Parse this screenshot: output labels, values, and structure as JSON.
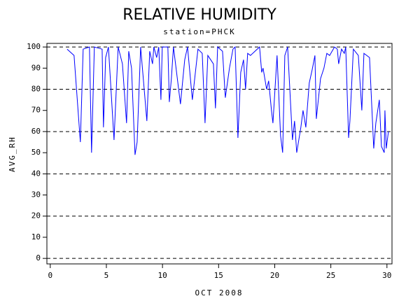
{
  "chart_data": {
    "type": "line",
    "title": "RELATIVE HUMIDITY",
    "subtitle": "station=PHCK",
    "x_label": "OCT 2008",
    "y_label": "AVG_RH",
    "xlim": [
      -0.3,
      30.45
    ],
    "ylim": [
      -2.6,
      101.7
    ],
    "xticks": [
      0,
      5,
      10,
      15,
      20,
      25,
      30
    ],
    "yticks": [
      0,
      10,
      20,
      30,
      40,
      50,
      60,
      70,
      80,
      90,
      100
    ],
    "grid_values": [
      0,
      20,
      40,
      60,
      80,
      100
    ],
    "grid": true,
    "series": [
      {
        "color": "#0000ff",
        "x": [
          1.5,
          2.12,
          2.68,
          2.93,
          3.49,
          3.68,
          3.93,
          4.62,
          4.74,
          4.93,
          5.18,
          5.68,
          6.05,
          6.43,
          6.8,
          6.99,
          7.24,
          7.55,
          7.74,
          8.05,
          8.61,
          8.86,
          9.11,
          9.23,
          9.48,
          9.67,
          9.86,
          9.98,
          10.48,
          10.61,
          10.79,
          10.98,
          11.6,
          11.98,
          12.23,
          12.66,
          13.16,
          13.54,
          13.79,
          14.04,
          14.54,
          14.72,
          14.91,
          15.35,
          15.6,
          15.97,
          16.28,
          16.47,
          16.72,
          16.97,
          17.22,
          17.4,
          17.59,
          17.84,
          18.65,
          18.84,
          18.96,
          19.28,
          19.46,
          19.71,
          19.84,
          20.21,
          20.52,
          20.71,
          20.9,
          21.15,
          21.58,
          21.77,
          21.96,
          22.33,
          22.52,
          22.77,
          23.08,
          23.33,
          23.58,
          23.71,
          24.08,
          24.39,
          24.64,
          24.89,
          25.33,
          25.58,
          25.7,
          25.95,
          26.2,
          26.33,
          26.58,
          26.7,
          27.01,
          27.45,
          27.76,
          27.95,
          28.45,
          28.82,
          29.01,
          29.32,
          29.51,
          29.76,
          29.82,
          29.94,
          30.13
        ],
        "values": [
          99,
          96,
          55,
          99,
          100,
          50,
          100,
          99,
          62,
          95,
          100,
          56,
          100,
          92,
          64,
          98,
          90,
          49,
          55,
          100,
          65,
          98,
          92,
          100,
          95,
          100,
          75,
          100,
          100,
          74,
          85,
          100,
          73,
          94,
          100,
          75,
          99,
          97,
          64,
          96,
          92,
          71,
          100,
          98,
          76,
          90,
          99,
          100,
          57,
          88,
          94,
          80,
          97,
          96,
          100,
          88,
          90,
          80,
          84,
          70,
          64,
          96,
          58,
          50,
          96,
          100,
          56,
          65,
          50,
          62,
          70,
          62,
          83,
          89,
          96,
          66,
          85,
          90,
          97,
          96,
          100,
          99,
          92,
          99,
          97,
          100,
          57,
          65,
          99,
          96,
          70,
          97,
          95,
          52,
          64,
          75,
          53,
          50,
          70,
          52,
          60
        ]
      }
    ]
  }
}
